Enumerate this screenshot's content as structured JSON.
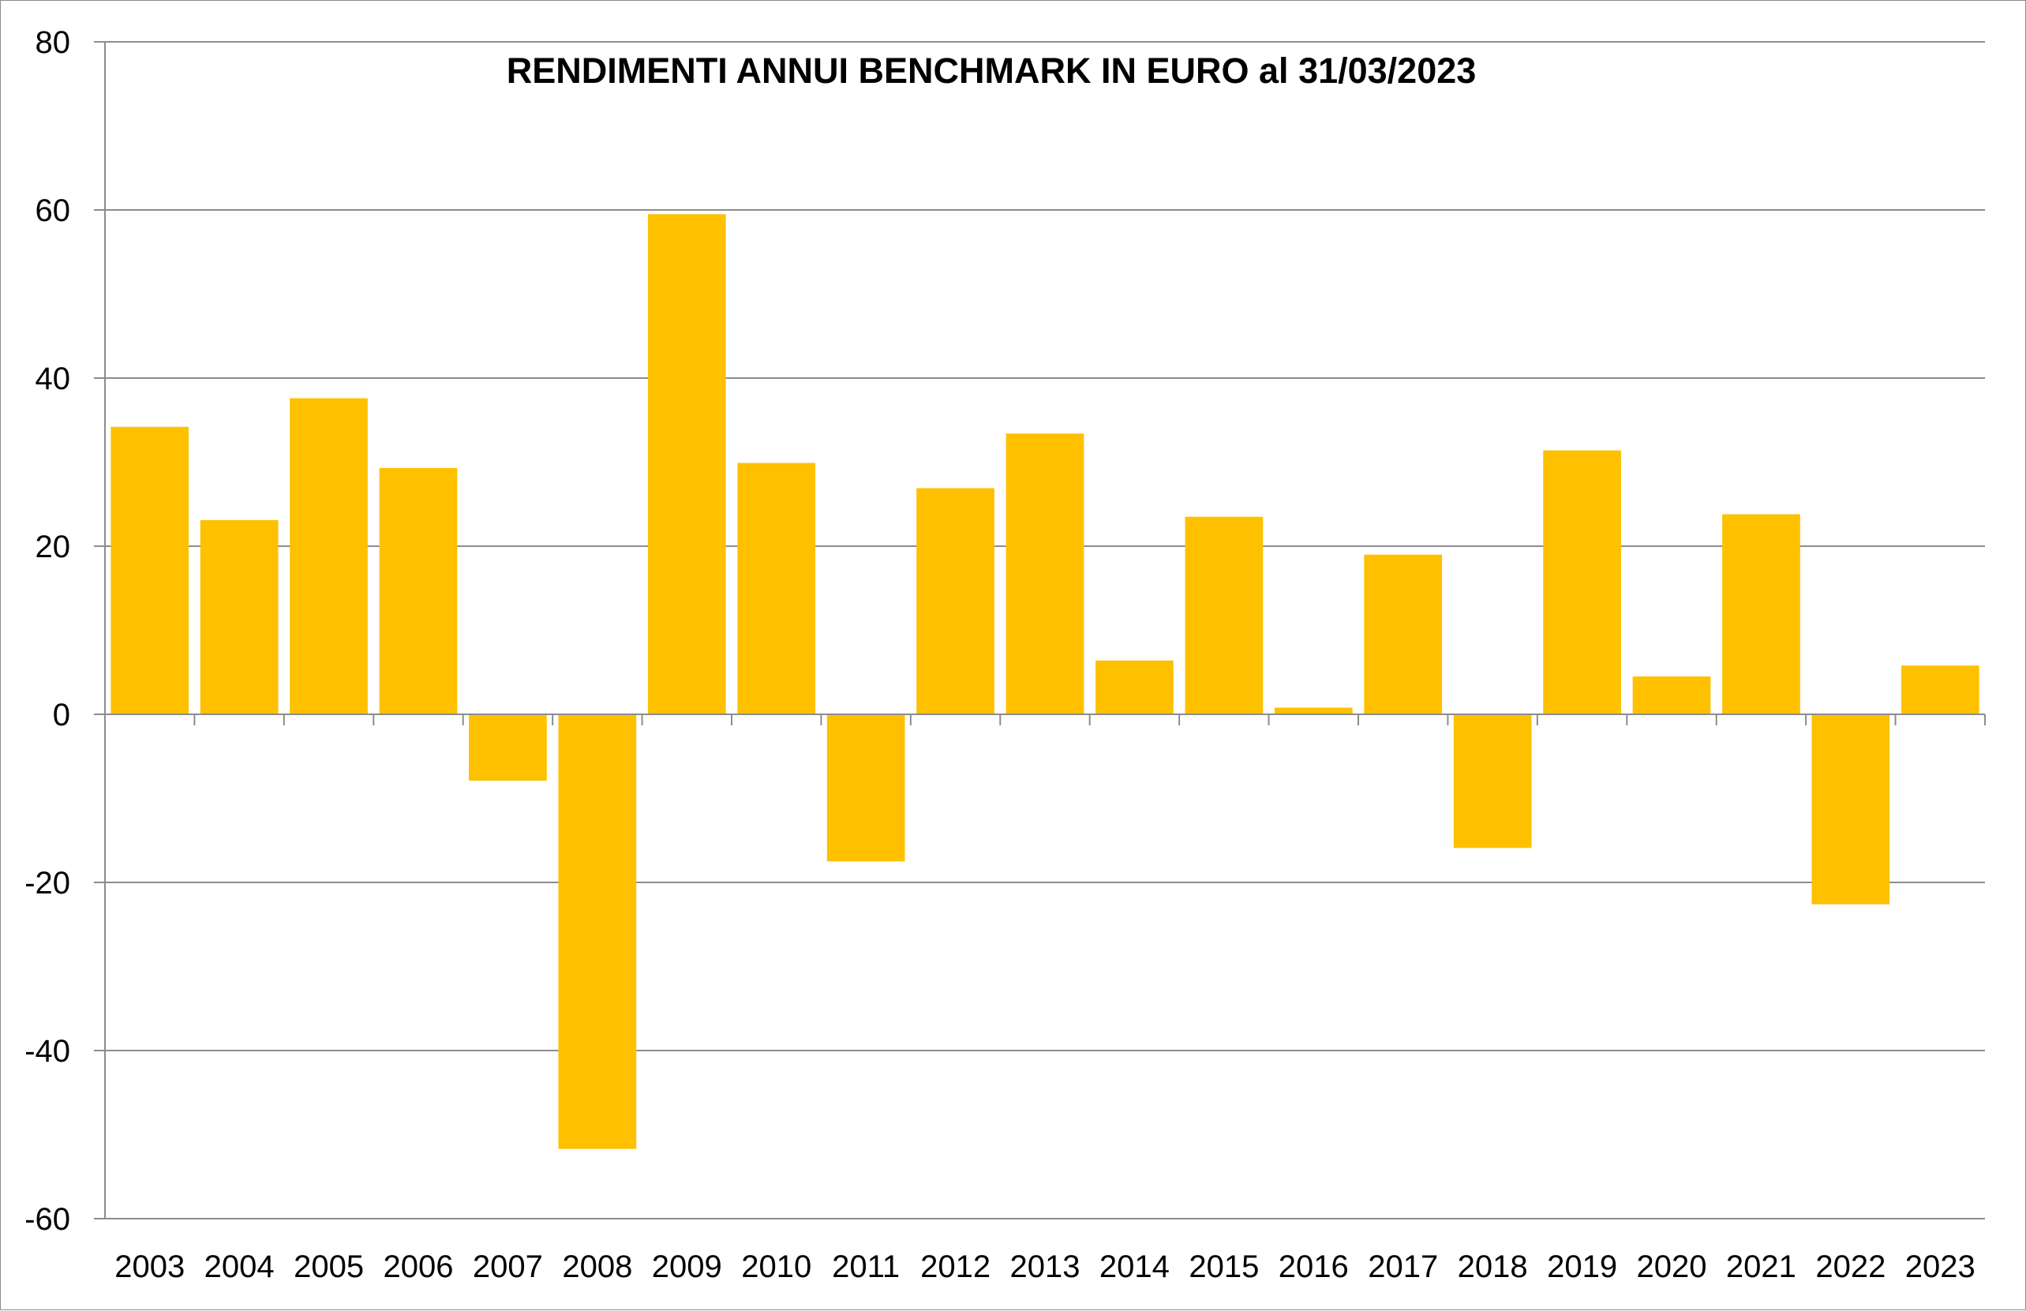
{
  "chart_data": {
    "type": "bar",
    "title": "RENDIMENTI ANNUI BENCHMARK IN EURO al 31/03/2023",
    "xlabel": "",
    "ylabel": "",
    "ylim": [
      -60,
      80
    ],
    "yticks": [
      80,
      60,
      40,
      20,
      0,
      -20,
      -40,
      -60
    ],
    "grid": true,
    "legend": "none",
    "bar_color": "#FFC000",
    "categories": [
      "2003",
      "2004",
      "2005",
      "2006",
      "2007",
      "2008",
      "2009",
      "2010",
      "2011",
      "2012",
      "2013",
      "2014",
      "2015",
      "2016",
      "2017",
      "2018",
      "2019",
      "2020",
      "2021",
      "2022",
      "2023"
    ],
    "values": [
      34.2,
      23.1,
      37.6,
      29.3,
      -7.9,
      -51.7,
      59.5,
      29.9,
      -17.5,
      26.9,
      33.4,
      6.4,
      23.5,
      0.8,
      19.0,
      -15.9,
      31.4,
      4.5,
      23.8,
      -22.6,
      5.8
    ]
  }
}
